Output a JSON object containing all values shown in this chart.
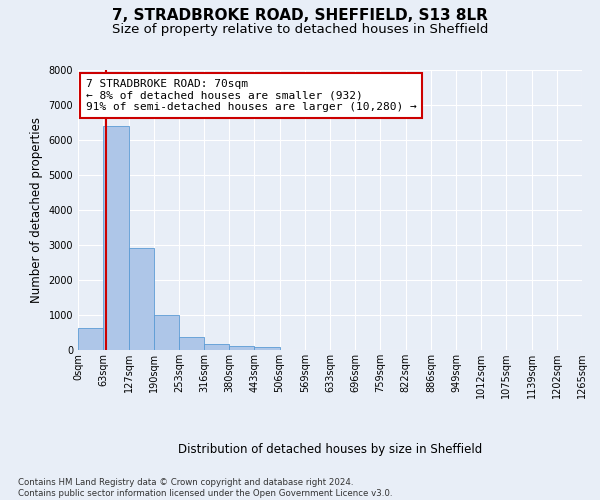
{
  "title": "7, STRADBROKE ROAD, SHEFFIELD, S13 8LR",
  "subtitle": "Size of property relative to detached houses in Sheffield",
  "xlabel": "Distribution of detached houses by size in Sheffield",
  "ylabel": "Number of detached properties",
  "bar_color": "#aec6e8",
  "bar_edge_color": "#5b9bd5",
  "property_line_color": "#cc0000",
  "property_value": 70,
  "bin_edges": [
    0,
    63,
    127,
    190,
    253,
    316,
    380,
    443,
    506,
    569,
    633,
    696,
    759,
    822,
    886,
    949,
    1012,
    1075,
    1139,
    1202,
    1265
  ],
  "bar_heights": [
    620,
    6400,
    2920,
    1000,
    380,
    160,
    110,
    80,
    0,
    0,
    0,
    0,
    0,
    0,
    0,
    0,
    0,
    0,
    0,
    0
  ],
  "annotation_text": "7 STRADBROKE ROAD: 70sqm\n← 8% of detached houses are smaller (932)\n91% of semi-detached houses are larger (10,280) →",
  "annotation_box_color": "#ffffff",
  "annotation_box_edge_color": "#cc0000",
  "ylim": [
    0,
    8000
  ],
  "yticks": [
    0,
    1000,
    2000,
    3000,
    4000,
    5000,
    6000,
    7000,
    8000
  ],
  "footer_text": "Contains HM Land Registry data © Crown copyright and database right 2024.\nContains public sector information licensed under the Open Government Licence v3.0.",
  "background_color": "#e8eef7",
  "grid_color": "#ffffff",
  "tick_label_fontsize": 7,
  "axis_label_fontsize": 8.5,
  "title_fontsize": 11,
  "subtitle_fontsize": 9.5
}
